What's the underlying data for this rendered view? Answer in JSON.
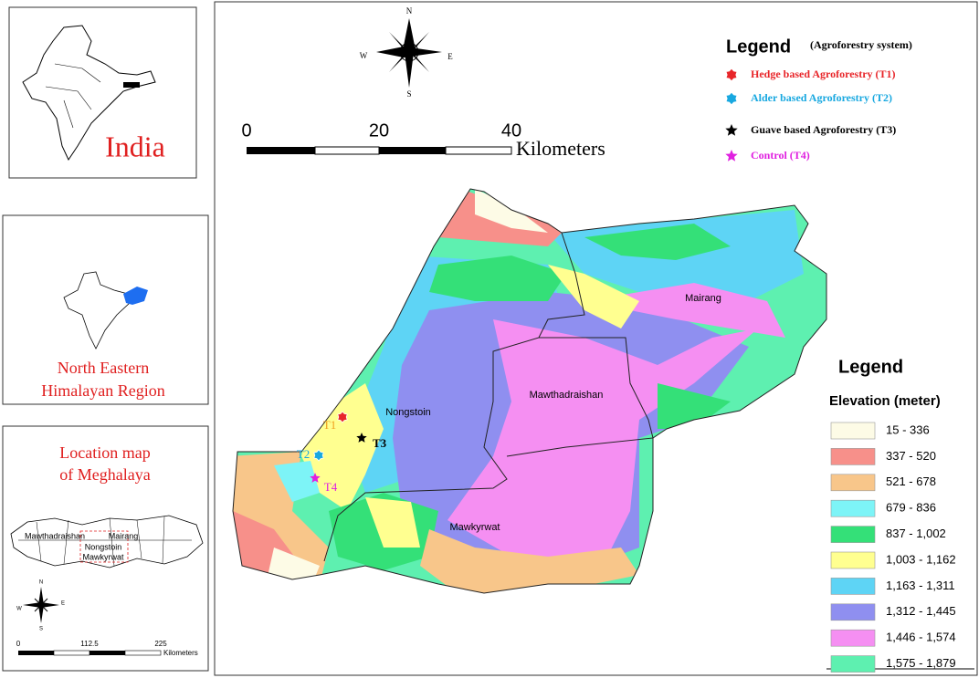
{
  "inset_india": {
    "label": "India"
  },
  "inset_region": {
    "label_lines": [
      "North Eastern",
      "Himalayan Region"
    ]
  },
  "inset_meghalaya": {
    "title_lines": [
      "Location map",
      "of Meghalaya"
    ],
    "places": [
      "Mawthadraishan",
      "Mairang",
      "Nongstoin",
      "Mawkyrwat"
    ],
    "compass": {
      "n": "N",
      "s": "S",
      "e": "E",
      "w": "W"
    },
    "scale": {
      "labels": [
        "0",
        "112.5",
        "225"
      ],
      "unit": "Kilometers"
    }
  },
  "main_map": {
    "compass": {
      "n": "N",
      "s": "S",
      "e": "E",
      "w": "W"
    },
    "scale": {
      "labels": [
        "0",
        "20",
        "40"
      ],
      "unit": "Kilometers"
    },
    "places": [
      "Mairang",
      "Mawthadraishan",
      "Nongstoin",
      "Mawkyrwat"
    ],
    "sites": [
      {
        "label": "T1",
        "color": "#e8262a",
        "label_color": "#f0a020"
      },
      {
        "label": "T2",
        "color": "#18a8e0",
        "label_color": "#18a8e0"
      },
      {
        "label": "T3",
        "color": "#000000",
        "label_color": "#000000"
      },
      {
        "label": "T4",
        "color": "#e020e0",
        "label_color": "#e020e0"
      }
    ]
  },
  "agroforestry_legend": {
    "title": "Legend",
    "subtitle": "(Agroforestry system)",
    "items": [
      {
        "label": "Hedge based Agroforestry (T1)",
        "color": "#e8262a"
      },
      {
        "label": "Alder based Agroforestry (T2)",
        "color": "#18a8e0"
      },
      {
        "label": "Guave based Agroforestry (T3)",
        "color": "#000000"
      },
      {
        "label": "Control (T4)",
        "color": "#e020e0"
      }
    ]
  },
  "elevation_legend": {
    "title": "Legend",
    "subtitle": "Elevation (meter)",
    "classes": [
      {
        "range": "15 - 336",
        "color": "#fdfbe6"
      },
      {
        "range": "337 - 520",
        "color": "#f7908a"
      },
      {
        "range": "521 - 678",
        "color": "#f8c68a"
      },
      {
        "range": "679 - 836",
        "color": "#7df4f7"
      },
      {
        "range": "837 - 1,002",
        "color": "#34e078"
      },
      {
        "range": "1,003 - 1,162",
        "color": "#ffff90"
      },
      {
        "range": "1,163 - 1,311",
        "color": "#5ed4f5"
      },
      {
        "range": "1,312 - 1,445",
        "color": "#8f8ff0"
      },
      {
        "range": "1,446 - 1,574",
        "color": "#f58ff2"
      },
      {
        "range": "1,575 - 1,879",
        "color": "#5ef0b0"
      }
    ]
  }
}
